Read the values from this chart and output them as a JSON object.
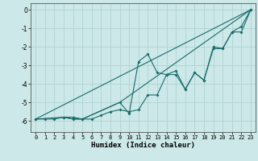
{
  "xlabel": "Humidex (Indice chaleur)",
  "xlim": [
    -0.5,
    23.5
  ],
  "ylim": [
    -6.6,
    0.35
  ],
  "yticks": [
    0,
    -1,
    -2,
    -3,
    -4,
    -5,
    -6
  ],
  "xticks": [
    0,
    1,
    2,
    3,
    4,
    5,
    6,
    7,
    8,
    9,
    10,
    11,
    12,
    13,
    14,
    15,
    16,
    17,
    18,
    19,
    20,
    21,
    22,
    23
  ],
  "bg_color": "#cce8e8",
  "grid_color": "#aacfcf",
  "line_color": "#1a6b6b",
  "lines": [
    {
      "x": [
        0,
        1,
        2,
        3,
        4,
        5,
        6,
        7,
        8,
        9,
        10,
        11,
        12,
        13,
        14,
        15,
        16,
        17,
        18,
        19,
        20,
        21,
        22,
        23
      ],
      "y": [
        -5.9,
        -5.9,
        -5.9,
        -5.8,
        -5.8,
        -5.9,
        -5.9,
        -5.7,
        -5.5,
        -5.4,
        -5.5,
        -5.4,
        -4.6,
        -4.6,
        -3.5,
        -3.5,
        -4.3,
        -3.4,
        -3.8,
        -2.1,
        -2.1,
        -1.2,
        -1.2,
        0.0
      ],
      "marker": true
    },
    {
      "x": [
        0,
        3,
        4,
        5,
        9,
        10,
        11,
        12,
        13,
        14,
        15,
        16,
        17,
        18,
        19,
        20,
        21,
        22,
        23
      ],
      "y": [
        -5.9,
        -5.8,
        -5.9,
        -5.9,
        -5.0,
        -5.6,
        -2.8,
        -2.4,
        -3.4,
        -3.5,
        -3.3,
        -4.3,
        -3.4,
        -3.8,
        -2.0,
        -2.1,
        -1.2,
        -0.9,
        0.0
      ],
      "marker": true
    },
    {
      "x": [
        0,
        23
      ],
      "y": [
        -5.9,
        0.0
      ],
      "marker": false
    },
    {
      "x": [
        3,
        4,
        5,
        9,
        23
      ],
      "y": [
        -5.8,
        -5.9,
        -5.9,
        -5.0,
        0.0
      ],
      "marker": false
    }
  ]
}
